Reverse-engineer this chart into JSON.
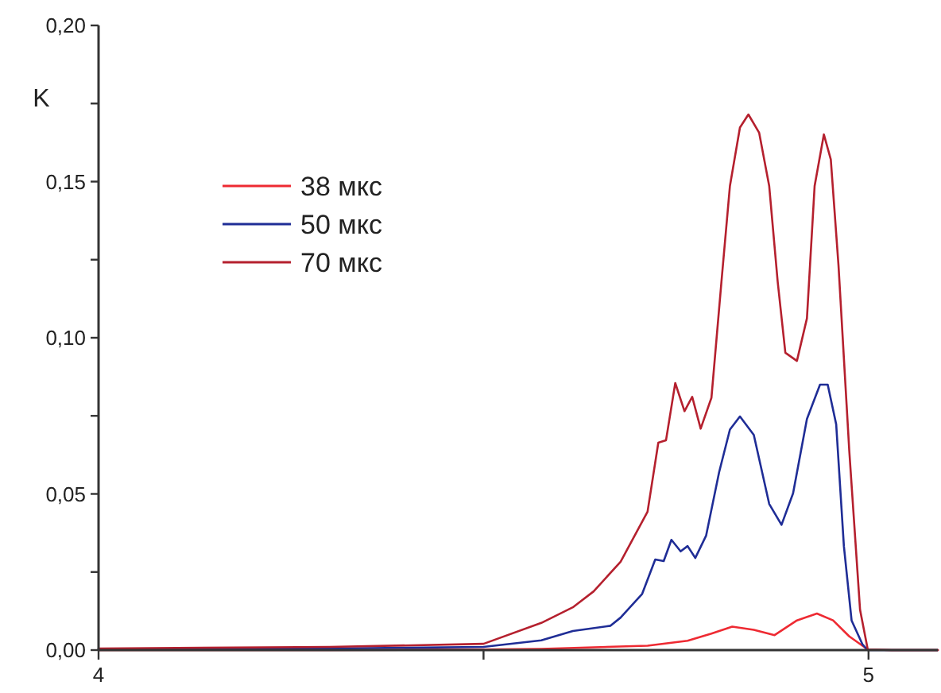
{
  "chart_data": {
    "type": "line",
    "ylabel": "K",
    "xlim": [
      4,
      5.09
    ],
    "ylim": [
      0,
      0.2
    ],
    "xticks": [
      4,
      {
        "value": 4.5,
        "label": null
      },
      5
    ],
    "yticks": [
      {
        "value": 0,
        "label": "0,00"
      },
      {
        "value": 0.025,
        "label": null
      },
      {
        "value": 0.05,
        "label": "0,05"
      },
      {
        "value": 0.075,
        "label": null
      },
      {
        "value": 0.1,
        "label": "0,10"
      },
      {
        "value": 0.125,
        "label": null
      },
      {
        "value": 0.15,
        "label": "0,15"
      },
      {
        "value": 0.175,
        "label": null
      },
      {
        "value": 0.2,
        "label": "0,20"
      }
    ],
    "grid": false,
    "legend": "top left",
    "marker": "none",
    "line_style": "solid",
    "series": [
      {
        "name": "38 мкс",
        "color": "#ee2a32",
        "x": [
          4,
          4.3,
          4.5,
          4.575,
          4.713,
          4.765,
          4.796,
          4.823,
          4.851,
          4.878,
          4.907,
          4.933,
          4.954,
          4.975,
          4.999,
          5.03,
          5.09
        ],
        "values": [
          0,
          0,
          0.0002,
          0.0004,
          0.0014,
          0.003,
          0.0053,
          0.0075,
          0.0065,
          0.0048,
          0.0095,
          0.0117,
          0.0095,
          0.0044,
          0.0002,
          0,
          0
        ]
      },
      {
        "name": "50 мкс",
        "color": "#1f2d96",
        "x": [
          4,
          4.3,
          4.5,
          4.575,
          4.616,
          4.665,
          4.678,
          4.706,
          4.723,
          4.734,
          4.744,
          4.756,
          4.765,
          4.775,
          4.789,
          4.806,
          4.82,
          4.833,
          4.851,
          4.871,
          4.887,
          4.902,
          4.92,
          4.937,
          4.947,
          4.958,
          4.968,
          4.978,
          4.992,
          4.999,
          5.03,
          5.09
        ],
        "values": [
          0.0003,
          0.0005,
          0.001,
          0.0031,
          0.0061,
          0.0078,
          0.0104,
          0.018,
          0.029,
          0.0285,
          0.0353,
          0.0316,
          0.0333,
          0.0295,
          0.0366,
          0.057,
          0.0706,
          0.0748,
          0.0689,
          0.0468,
          0.0401,
          0.0502,
          0.074,
          0.085,
          0.085,
          0.0723,
          0.0333,
          0.0095,
          0.0019,
          0,
          0,
          0
        ]
      },
      {
        "name": "70 мкс",
        "color": "#b5202e",
        "x": [
          4,
          4.3,
          4.5,
          4.575,
          4.616,
          4.643,
          4.678,
          4.713,
          4.727,
          4.737,
          4.749,
          4.761,
          4.771,
          4.782,
          4.796,
          4.809,
          4.82,
          4.833,
          4.844,
          4.858,
          4.871,
          4.882,
          4.892,
          4.907,
          4.92,
          4.93,
          4.942,
          4.951,
          4.961,
          4.975,
          4.989,
          4.999,
          5.03,
          5.09
        ],
        "values": [
          0.0005,
          0.001,
          0.002,
          0.0087,
          0.0137,
          0.0188,
          0.0283,
          0.0443,
          0.0664,
          0.0672,
          0.0855,
          0.0765,
          0.0811,
          0.0709,
          0.0808,
          0.118,
          0.1486,
          0.1673,
          0.1715,
          0.1656,
          0.1486,
          0.118,
          0.0952,
          0.0926,
          0.1062,
          0.1486,
          0.1651,
          0.1571,
          0.1232,
          0.0638,
          0.0129,
          0.0002,
          0,
          0
        ]
      }
    ]
  }
}
